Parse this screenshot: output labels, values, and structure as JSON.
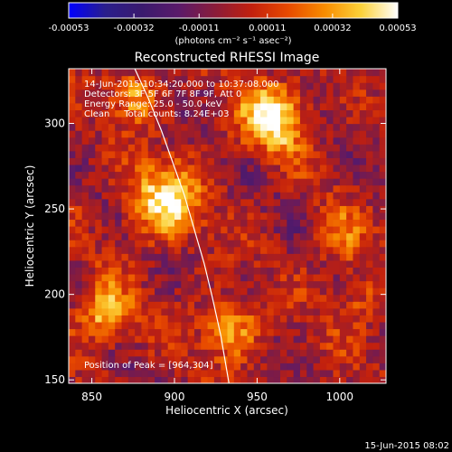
{
  "colorbar": {
    "tick_labels": [
      "-0.00053",
      "-0.00032",
      "-0.00011",
      "0.00011",
      "0.00032",
      "0.00053"
    ],
    "tick_values": [
      -0.00053,
      -0.00032,
      -0.00011,
      0.00011,
      0.00032,
      0.00053
    ],
    "range": [
      -0.00053,
      0.00053
    ],
    "unit_label": "(photons cm⁻² s⁻¹ asec⁻²)",
    "colors": [
      "#0000ff",
      "#2a1e8c",
      "#3a1a6e",
      "#5a1a6a",
      "#8a1c3a",
      "#c2200e",
      "#e84a00",
      "#f88c00",
      "#fcd23a",
      "#ffffff"
    ]
  },
  "chart_data": {
    "type": "heatmap",
    "title": "Reconstructed RHESSI Image",
    "xlabel": "Heliocentric X (arcsec)",
    "ylabel": "Heliocentric Y (arcsec)",
    "xlim": [
      836,
      1028
    ],
    "ylim": [
      148,
      332
    ],
    "x_ticks": [
      850,
      900,
      950,
      1000
    ],
    "x_tick_labels": [
      "850",
      "900",
      "950",
      "1000"
    ],
    "y_ticks": [
      150,
      200,
      250,
      300
    ],
    "y_tick_labels": [
      "150",
      "200",
      "250",
      "300"
    ],
    "info_lines": [
      "14-Jun-2015 10:34:20.000 to 10:37:08.000",
      "Detectors: 3F 5F 6F 7F 8F 9F, Att 0",
      "Energy Range: 25.0 - 50.0 keV",
      "Clean     Total counts: 8.24E+03"
    ],
    "peak_label": "Position of Peak = [964,304]",
    "peak_position": [
      964,
      304
    ],
    "value_range": [
      -0.00053,
      0.00053
    ],
    "bright_sources": [
      {
        "x": 960,
        "y": 304,
        "value": 0.00053,
        "spread": 14
      },
      {
        "x": 894,
        "y": 255,
        "value": 0.0005,
        "spread": 15
      },
      {
        "x": 858,
        "y": 188,
        "value": 0.00042,
        "spread": 12
      },
      {
        "x": 876,
        "y": 316,
        "value": 0.00034,
        "spread": 10
      },
      {
        "x": 934,
        "y": 180,
        "value": 0.00036,
        "spread": 12
      },
      {
        "x": 1000,
        "y": 232,
        "value": 0.00022,
        "spread": 12
      },
      {
        "x": 1012,
        "y": 196,
        "value": 0.0002,
        "spread": 12
      }
    ],
    "limb_curve": {
      "x": [
        876,
        884,
        892,
        899,
        906,
        912,
        918,
        923,
        928,
        933
      ],
      "y": [
        332,
        315,
        296,
        277,
        258,
        238,
        218,
        198,
        176,
        148
      ]
    }
  },
  "timestamp": "15-Jun-2015 08:02"
}
